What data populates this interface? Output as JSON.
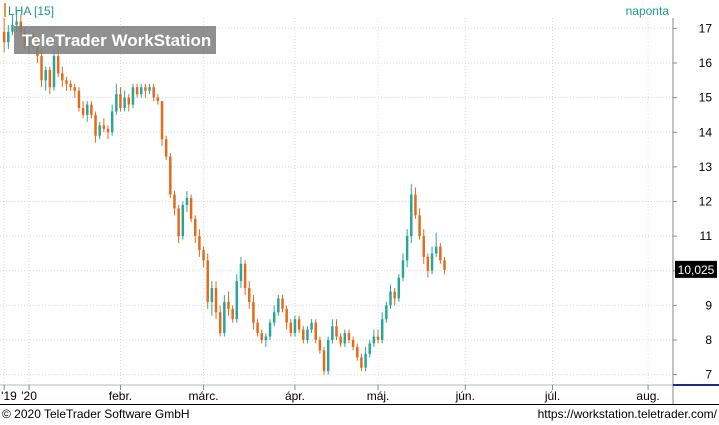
{
  "header": {
    "symbol_label": "LHA [15]",
    "period_label": "naponta"
  },
  "watermark": "TeleTrader WorkStation",
  "footer": {
    "copyright": "© 2020 TeleTrader Software GmbH",
    "url": "https://workstation.teletrader.com/"
  },
  "colors": {
    "up": "#2aa59a",
    "down": "#e46a1c",
    "accent": "#1a9a90",
    "last_price_bg": "#000000"
  },
  "chart_data": {
    "type": "candlestick",
    "ylim": [
      6.7,
      17.3
    ],
    "y_ticks": [
      7,
      8,
      9,
      10,
      11,
      12,
      13,
      14,
      15,
      16,
      17
    ],
    "x_ticks": [
      {
        "label": "'19",
        "t": 0
      },
      {
        "label": "'20",
        "t": 6
      },
      {
        "label": "febr.",
        "t": 28
      },
      {
        "label": "márc.",
        "t": 48
      },
      {
        "label": "ápr.",
        "t": 70
      },
      {
        "label": "máj.",
        "t": 90
      },
      {
        "label": "jún.",
        "t": 111
      },
      {
        "label": "júl.",
        "t": 132
      },
      {
        "label": "aug.",
        "t": 155
      }
    ],
    "x_range": [
      -1,
      161
    ],
    "last_price": "10,025",
    "candles": [
      [
        0,
        16.9,
        17.3,
        16.3,
        16.6
      ],
      [
        1,
        16.6,
        17.1,
        16.4,
        16.9
      ],
      [
        2,
        16.9,
        17.4,
        16.8,
        17.1
      ],
      [
        3,
        17.1,
        17.5,
        16.9,
        17.2
      ],
      [
        4,
        17.2,
        17.4,
        16.8,
        16.9
      ],
      [
        5,
        16.9,
        17.0,
        16.4,
        16.5
      ],
      [
        6,
        16.5,
        16.9,
        16.3,
        16.8
      ],
      [
        7,
        16.8,
        16.9,
        16.4,
        16.6
      ],
      [
        8,
        16.6,
        16.7,
        16.0,
        16.2
      ],
      [
        9,
        16.2,
        16.4,
        15.3,
        15.5
      ],
      [
        10,
        15.5,
        15.9,
        15.2,
        15.8
      ],
      [
        11,
        15.8,
        15.9,
        15.1,
        15.3
      ],
      [
        12,
        15.3,
        16.4,
        15.2,
        16.2
      ],
      [
        13,
        16.2,
        16.5,
        15.6,
        15.7
      ],
      [
        14,
        15.7,
        15.9,
        15.3,
        15.5
      ],
      [
        15,
        15.5,
        15.6,
        15.2,
        15.4
      ],
      [
        16,
        15.4,
        15.5,
        15.2,
        15.3
      ],
      [
        17,
        15.3,
        15.4,
        15.0,
        15.2
      ],
      [
        18,
        15.2,
        15.3,
        14.6,
        14.7
      ],
      [
        19,
        14.7,
        14.9,
        14.4,
        14.5
      ],
      [
        20,
        14.5,
        14.9,
        14.3,
        14.8
      ],
      [
        21,
        14.8,
        14.9,
        14.4,
        14.5
      ],
      [
        22,
        14.5,
        14.6,
        13.7,
        13.9
      ],
      [
        23,
        13.9,
        14.3,
        13.8,
        14.2
      ],
      [
        24,
        14.2,
        14.4,
        14.0,
        14.1
      ],
      [
        25,
        14.1,
        14.2,
        13.8,
        14.0
      ],
      [
        26,
        14.0,
        14.8,
        13.9,
        14.6
      ],
      [
        27,
        14.6,
        15.4,
        14.5,
        15.1
      ],
      [
        28,
        15.1,
        15.3,
        14.6,
        14.7
      ],
      [
        29,
        14.7,
        15.2,
        14.6,
        15.0
      ],
      [
        30,
        15.0,
        15.1,
        14.6,
        14.8
      ],
      [
        31,
        14.8,
        15.4,
        14.7,
        15.3
      ],
      [
        32,
        15.3,
        15.4,
        15.0,
        15.1
      ],
      [
        33,
        15.1,
        15.4,
        15.0,
        15.3
      ],
      [
        34,
        15.3,
        15.4,
        15.0,
        15.2
      ],
      [
        35,
        15.2,
        15.4,
        15.1,
        15.3
      ],
      [
        36,
        15.3,
        15.4,
        14.9,
        15.0
      ],
      [
        37,
        15.0,
        15.1,
        14.8,
        14.9
      ],
      [
        38,
        14.9,
        14.8,
        13.6,
        13.8
      ],
      [
        39,
        13.8,
        13.9,
        13.2,
        13.3
      ],
      [
        40,
        13.3,
        13.4,
        12.1,
        12.2
      ],
      [
        41,
        12.2,
        12.3,
        11.6,
        11.8
      ],
      [
        42,
        11.8,
        11.9,
        10.8,
        11.0
      ],
      [
        43,
        11.0,
        12.0,
        10.9,
        11.9
      ],
      [
        44,
        11.9,
        12.3,
        11.7,
        12.1
      ],
      [
        45,
        12.1,
        12.2,
        11.4,
        11.5
      ],
      [
        46,
        11.5,
        11.6,
        10.8,
        11.0
      ],
      [
        47,
        11.0,
        11.2,
        10.4,
        10.6
      ],
      [
        48,
        10.6,
        10.7,
        10.1,
        10.3
      ],
      [
        49,
        10.3,
        10.5,
        8.9,
        9.1
      ],
      [
        50,
        9.1,
        9.7,
        8.7,
        9.5
      ],
      [
        51,
        9.5,
        9.7,
        8.6,
        8.8
      ],
      [
        52,
        8.8,
        9.0,
        8.1,
        8.2
      ],
      [
        53,
        8.2,
        9.3,
        8.1,
        9.1
      ],
      [
        54,
        9.1,
        9.4,
        8.7,
        8.9
      ],
      [
        55,
        8.9,
        9.0,
        8.5,
        8.6
      ],
      [
        56,
        8.6,
        9.9,
        8.5,
        9.7
      ],
      [
        57,
        9.7,
        10.4,
        9.5,
        10.2
      ],
      [
        58,
        10.2,
        10.3,
        9.3,
        9.5
      ],
      [
        59,
        9.5,
        9.7,
        8.9,
        9.1
      ],
      [
        60,
        9.1,
        9.3,
        8.3,
        8.5
      ],
      [
        61,
        8.5,
        8.6,
        8.1,
        8.2
      ],
      [
        62,
        8.2,
        8.3,
        7.9,
        8.0
      ],
      [
        63,
        8.0,
        8.2,
        7.8,
        8.1
      ],
      [
        64,
        8.1,
        8.6,
        8.0,
        8.5
      ],
      [
        65,
        8.5,
        9.0,
        8.4,
        8.8
      ],
      [
        66,
        8.8,
        9.3,
        8.7,
        9.2
      ],
      [
        67,
        9.2,
        9.3,
        8.8,
        8.9
      ],
      [
        68,
        8.9,
        9.0,
        8.3,
        8.5
      ],
      [
        69,
        8.5,
        8.6,
        8.1,
        8.2
      ],
      [
        70,
        8.2,
        8.7,
        8.1,
        8.6
      ],
      [
        71,
        8.6,
        8.7,
        8.2,
        8.3
      ],
      [
        72,
        8.3,
        8.4,
        7.9,
        8.0
      ],
      [
        73,
        8.0,
        8.4,
        7.9,
        8.3
      ],
      [
        74,
        8.3,
        8.6,
        8.2,
        8.5
      ],
      [
        75,
        8.5,
        8.6,
        7.9,
        8.0
      ],
      [
        76,
        8.0,
        8.1,
        7.6,
        7.7
      ],
      [
        77,
        7.7,
        7.8,
        7.0,
        7.1
      ],
      [
        78,
        7.1,
        8.1,
        7.0,
        8.0
      ],
      [
        79,
        8.0,
        8.6,
        7.9,
        8.4
      ],
      [
        80,
        8.4,
        8.6,
        8.0,
        8.1
      ],
      [
        81,
        8.1,
        8.2,
        7.8,
        7.9
      ],
      [
        82,
        7.9,
        8.3,
        7.8,
        8.2
      ],
      [
        83,
        8.2,
        8.3,
        7.9,
        8.0
      ],
      [
        84,
        8.0,
        8.1,
        7.7,
        7.8
      ],
      [
        85,
        7.8,
        7.9,
        7.4,
        7.5
      ],
      [
        86,
        7.5,
        7.6,
        7.1,
        7.2
      ],
      [
        87,
        7.2,
        7.8,
        7.1,
        7.6
      ],
      [
        88,
        7.6,
        8.0,
        7.5,
        7.9
      ],
      [
        89,
        7.9,
        8.3,
        7.8,
        8.1
      ],
      [
        90,
        8.1,
        8.3,
        7.9,
        8.0
      ],
      [
        91,
        8.0,
        8.8,
        7.9,
        8.6
      ],
      [
        92,
        8.6,
        9.1,
        8.5,
        9.0
      ],
      [
        93,
        9.0,
        9.6,
        8.9,
        9.4
      ],
      [
        94,
        9.4,
        9.5,
        9.0,
        9.2
      ],
      [
        95,
        9.2,
        9.9,
        9.1,
        9.8
      ],
      [
        96,
        9.8,
        10.5,
        9.7,
        10.3
      ],
      [
        97,
        10.3,
        11.2,
        10.1,
        11.0
      ],
      [
        98,
        11.0,
        12.5,
        10.8,
        12.2
      ],
      [
        99,
        12.2,
        12.4,
        11.5,
        11.6
      ],
      [
        100,
        11.6,
        11.8,
        10.9,
        11.0
      ],
      [
        101,
        11.0,
        11.2,
        10.2,
        10.4
      ],
      [
        102,
        10.4,
        10.5,
        9.8,
        10.0
      ],
      [
        103,
        10.0,
        10.7,
        9.9,
        10.5
      ],
      [
        104,
        10.5,
        11.1,
        10.4,
        10.7
      ],
      [
        105,
        10.7,
        10.8,
        10.2,
        10.3
      ],
      [
        106,
        10.3,
        10.4,
        9.9,
        10.025
      ]
    ]
  }
}
